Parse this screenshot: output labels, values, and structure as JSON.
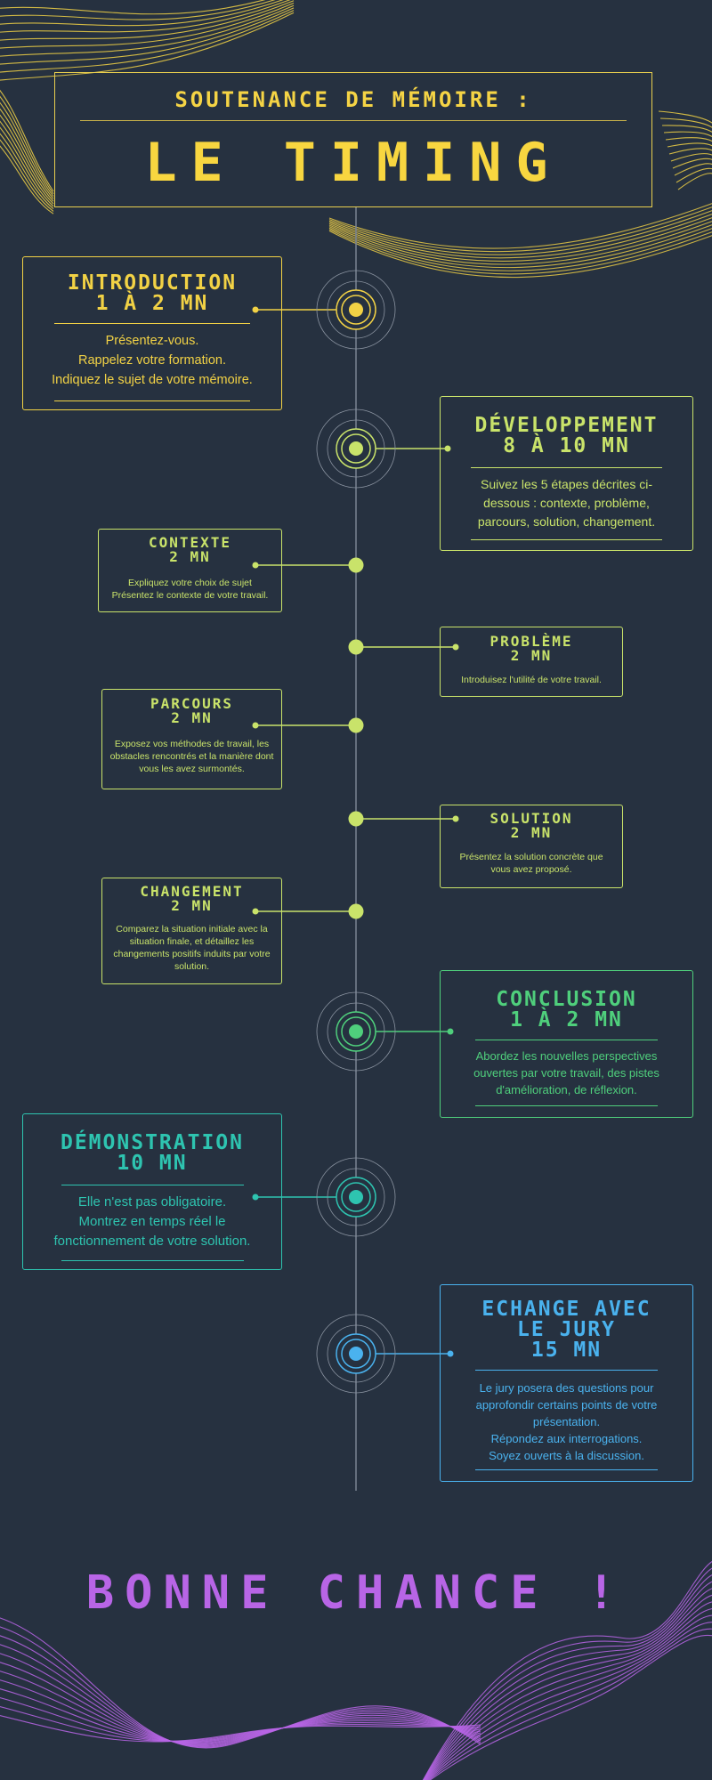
{
  "header": {
    "subtitle": "SOUTENANCE DE MÉMOIRE :",
    "title": "LE TIMING"
  },
  "steps": [
    {
      "title": "INTRODUCTION",
      "duration": "1 À 2 MN",
      "text": "Présentez-vous.\nRappelez votre formation.\nIndiquez le sujet de votre mémoire.",
      "color": "#f2d245"
    },
    {
      "title": "DÉVELOPPEMENT",
      "duration": "8 À 10 MN",
      "text": "Suivez les 5 étapes décrites ci-dessous : contexte, problème, parcours, solution, changement.",
      "color": "#c9e36a"
    },
    {
      "title": "CONTEXTE",
      "duration": "2 MN",
      "text": "Expliquez votre choix de sujet\nPrésentez le contexte de votre travail.",
      "color": "#c9e36a"
    },
    {
      "title": "PROBLÈME",
      "duration": "2 MN",
      "text": "Introduisez l'utilité de votre travail.",
      "color": "#c9e36a"
    },
    {
      "title": "PARCOURS",
      "duration": "2 MN",
      "text": "Exposez vos méthodes de travail, les obstacles rencontrés et la manière dont vous les avez surmontés.",
      "color": "#c9e36a"
    },
    {
      "title": "SOLUTION",
      "duration": "2 MN",
      "text": "Présentez la solution concrète que vous avez proposé.",
      "color": "#c9e36a"
    },
    {
      "title": "CHANGEMENT",
      "duration": "2 MN",
      "text": "Comparez la situation initiale avec la situation finale, et détaillez les changements positifs induits par votre solution.",
      "color": "#c9e36a"
    },
    {
      "title": "CONCLUSION",
      "duration": "1 À 2 MN",
      "text": "Abordez les nouvelles perspectives ouvertes par votre travail, des pistes d'amélioration, de réflexion.",
      "color": "#4fcf7c"
    },
    {
      "title": "DÉMONSTRATION",
      "duration": "10 MN",
      "text": "Elle n'est pas obligatoire.\nMontrez en temps réel le fonctionnement de votre solution.",
      "color": "#2ec4b0"
    },
    {
      "title": "ECHANGE AVEC LE JURY",
      "duration": "15 MN",
      "text": "Le jury posera des questions pour approfondir certains points de votre présentation.\nRépondez aux interrogations.\nSoyez ouverts à la discussion.",
      "color": "#4ab2ee"
    }
  ],
  "footer": "BONNE CHANCE !",
  "colors": {
    "background": "#263140",
    "yellow": "#f2d245",
    "lime": "#c9e36a",
    "green": "#4fcf7c",
    "teal": "#2ec4b0",
    "blue": "#4ab2ee",
    "purple": "#b865e6",
    "timeline": "#7a8493"
  }
}
